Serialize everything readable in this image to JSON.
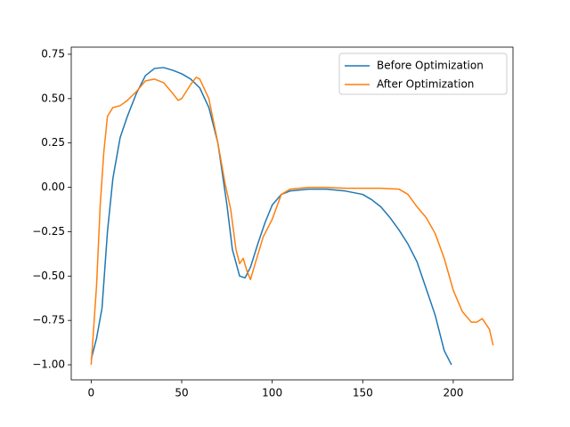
{
  "chart_data": {
    "type": "line",
    "series": [
      {
        "name": "Before Optimization",
        "color": "#1f77b4",
        "x": [
          0,
          3,
          6,
          9,
          12,
          16,
          20,
          25,
          30,
          35,
          40,
          45,
          50,
          55,
          60,
          65,
          70,
          75,
          78,
          82,
          85,
          88,
          92,
          96,
          100,
          105,
          110,
          120,
          130,
          140,
          150,
          155,
          160,
          165,
          170,
          175,
          180,
          185,
          190,
          195,
          199
        ],
        "values": [
          -0.97,
          -0.85,
          -0.68,
          -0.25,
          0.05,
          0.28,
          0.4,
          0.53,
          0.63,
          0.67,
          0.675,
          0.66,
          0.64,
          0.61,
          0.56,
          0.45,
          0.25,
          -0.1,
          -0.35,
          -0.5,
          -0.51,
          -0.45,
          -0.32,
          -0.2,
          -0.1,
          -0.04,
          -0.02,
          -0.01,
          -0.01,
          -0.02,
          -0.04,
          -0.07,
          -0.11,
          -0.17,
          -0.24,
          -0.32,
          -0.42,
          -0.57,
          -0.72,
          -0.92,
          -1.0
        ]
      },
      {
        "name": "After Optimization",
        "color": "#ff7f0e",
        "x": [
          0,
          3,
          5,
          7,
          9,
          12,
          16,
          20,
          25,
          30,
          35,
          40,
          45,
          48,
          50,
          55,
          58,
          60,
          65,
          70,
          74,
          77,
          80,
          82,
          84,
          86,
          88,
          90,
          95,
          100,
          105,
          110,
          120,
          130,
          140,
          160,
          170,
          175,
          180,
          185,
          190,
          195,
          200,
          205,
          210,
          213,
          216,
          220,
          222
        ],
        "values": [
          -1.0,
          -0.55,
          -0.1,
          0.2,
          0.4,
          0.45,
          0.46,
          0.49,
          0.54,
          0.6,
          0.61,
          0.59,
          0.53,
          0.49,
          0.5,
          0.58,
          0.62,
          0.61,
          0.5,
          0.25,
          0.02,
          -0.12,
          -0.35,
          -0.43,
          -0.4,
          -0.47,
          -0.52,
          -0.45,
          -0.28,
          -0.18,
          -0.04,
          -0.01,
          0,
          0,
          -0.005,
          -0.005,
          -0.01,
          -0.04,
          -0.11,
          -0.17,
          -0.26,
          -0.4,
          -0.58,
          -0.7,
          -0.76,
          -0.76,
          -0.74,
          -0.8,
          -0.89
        ]
      }
    ],
    "xlim": [
      -11,
      233
    ],
    "ylim": [
      -1.085,
      0.79
    ],
    "xticks": [
      0,
      50,
      100,
      150,
      200
    ],
    "yticks": [
      {
        "value": -1,
        "label": "−1.00"
      },
      {
        "value": -0.75,
        "label": "−0.75"
      },
      {
        "value": -0.5,
        "label": "−0.50"
      },
      {
        "value": -0.25,
        "label": "−0.25"
      },
      {
        "value": 0,
        "label": "0.00"
      },
      {
        "value": 0.25,
        "label": "0.25"
      },
      {
        "value": 0.5,
        "label": "0.50"
      },
      {
        "value": 0.75,
        "label": "0.75"
      }
    ],
    "legend": "upper right",
    "grid": false
  }
}
